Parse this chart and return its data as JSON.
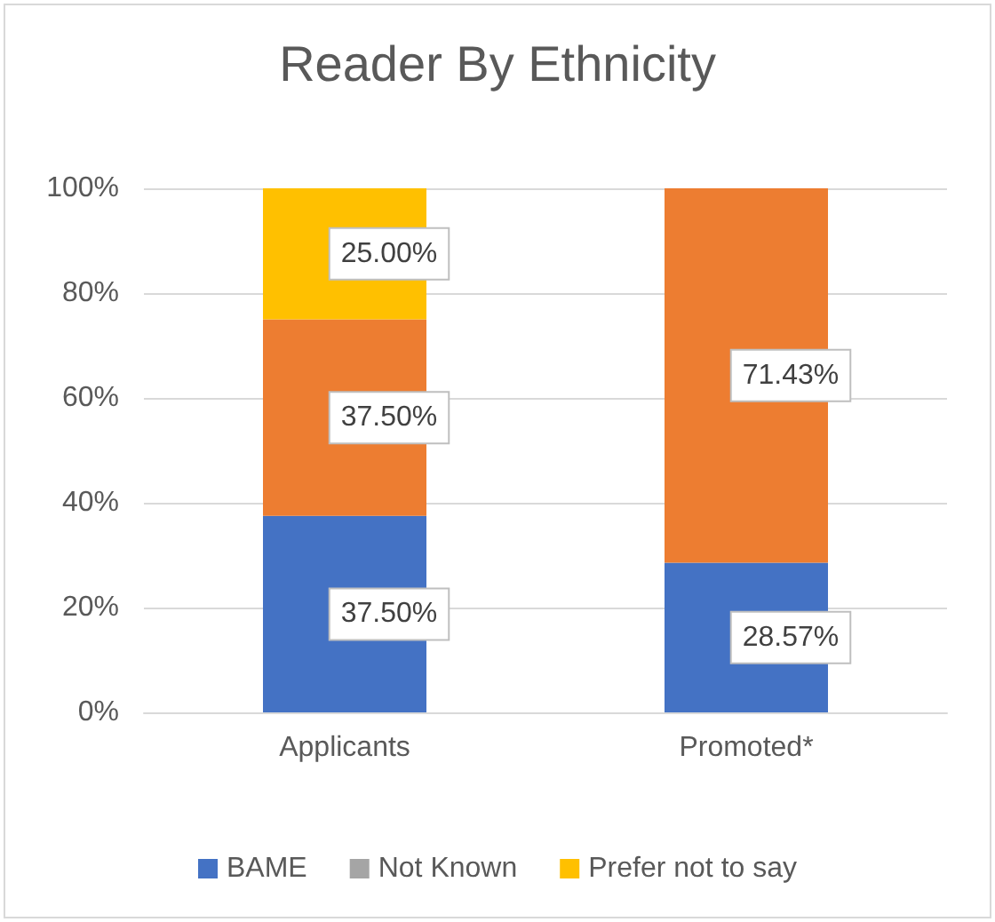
{
  "chart_data": {
    "type": "bar",
    "title": "Reader By Ethnicity",
    "categories": [
      "Applicants",
      "Promoted*"
    ],
    "stacked": true,
    "series": [
      {
        "name": "BAME",
        "color": "#4472c4",
        "values": [
          37.5,
          28.57
        ],
        "value_labels": [
          "37.50%",
          "28.57%"
        ]
      },
      {
        "color": "#ed7d31",
        "values": [
          37.5,
          71.43
        ],
        "value_labels": [
          "37.50%",
          "71.43%"
        ]
      },
      {
        "name": "Not Known",
        "color": "#a5a5a5",
        "values": [
          null,
          null
        ]
      },
      {
        "name": "Prefer not to say",
        "color": "#ffc000",
        "values": [
          25,
          null
        ],
        "value_labels": [
          "25.00%",
          null
        ]
      }
    ],
    "ylim": [
      0,
      100
    ],
    "yticks": [
      {
        "value": 0,
        "label": "0%"
      },
      {
        "value": 20,
        "label": "20%"
      },
      {
        "value": 40,
        "label": "40%"
      },
      {
        "value": 60,
        "label": "60%"
      },
      {
        "value": 80,
        "label": "80%"
      },
      {
        "value": 100,
        "label": "100%"
      }
    ],
    "grid": "y",
    "legend": "bottom"
  }
}
